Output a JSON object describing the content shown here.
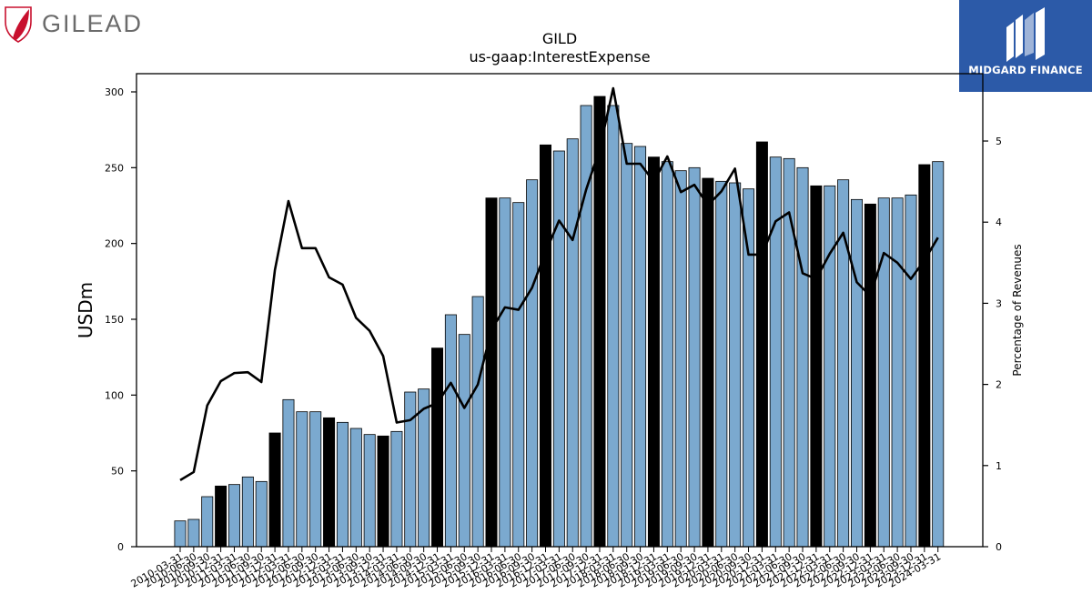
{
  "branding": {
    "company_logo_text": "GILEAD",
    "company_logo_color": "#c8102e",
    "publisher_logo_text": "MIDGARD FINANCE",
    "publisher_bg_color": "#2c5aa8"
  },
  "chart_data": {
    "type": "bar",
    "title": "GILD",
    "subtitle": "us-gaap:InterestExpense",
    "ylabel": "USDm",
    "y2label": "Percentage of Revenues",
    "ylim": [
      0,
      312
    ],
    "y2lim": [
      0,
      5.83
    ],
    "yticks": [
      0,
      50,
      100,
      150,
      200,
      250,
      300
    ],
    "y2ticks": [
      0,
      1,
      2,
      3,
      4,
      5
    ],
    "bar_color": "#7ba9cf",
    "highlight_color": "#000000",
    "line_color": "#000000",
    "categories": [
      "2010-03-31",
      "2010-06-30",
      "2010-09-30",
      "2010-12-31",
      "2011-03-31",
      "2011-06-30",
      "2011-09-30",
      "2011-12-31",
      "2012-03-31",
      "2012-06-30",
      "2012-09-30",
      "2012-12-31",
      "2013-03-31",
      "2013-06-30",
      "2013-09-30",
      "2013-12-31",
      "2014-03-31",
      "2014-06-30",
      "2014-09-30",
      "2014-12-31",
      "2015-03-31",
      "2015-06-30",
      "2015-09-30",
      "2015-12-31",
      "2016-03-31",
      "2016-06-30",
      "2016-09-30",
      "2016-12-31",
      "2017-03-31",
      "2017-06-30",
      "2017-09-30",
      "2017-12-31",
      "2018-03-31",
      "2018-06-30",
      "2018-09-30",
      "2018-12-31",
      "2019-03-31",
      "2019-06-30",
      "2019-09-30",
      "2019-12-31",
      "2020-03-31",
      "2020-06-30",
      "2020-09-30",
      "2020-12-31",
      "2021-03-31",
      "2021-06-30",
      "2021-09-30",
      "2021-12-31",
      "2022-03-31",
      "2022-06-30",
      "2022-09-30",
      "2022-12-31",
      "2023-03-31",
      "2023-06-30",
      "2023-09-30",
      "2023-12-31",
      "2024-03-31"
    ],
    "values": [
      17,
      18,
      33,
      40,
      41,
      46,
      43,
      75,
      97,
      89,
      89,
      85,
      82,
      78,
      74,
      73,
      76,
      102,
      104,
      131,
      153,
      140,
      165,
      230,
      230,
      227,
      242,
      265,
      261,
      269,
      291,
      297,
      291,
      266,
      264,
      257,
      254,
      248,
      250,
      243,
      241,
      240,
      236,
      267,
      257,
      256,
      250,
      238,
      238,
      242,
      229,
      226,
      230,
      230,
      232,
      252,
      254
    ],
    "highlighted": [
      false,
      false,
      false,
      true,
      false,
      false,
      false,
      true,
      false,
      false,
      false,
      true,
      false,
      false,
      false,
      true,
      false,
      false,
      false,
      true,
      false,
      false,
      false,
      true,
      false,
      false,
      false,
      true,
      false,
      false,
      false,
      true,
      false,
      false,
      false,
      true,
      false,
      false,
      false,
      true,
      false,
      false,
      false,
      true,
      false,
      false,
      false,
      true,
      false,
      false,
      false,
      true,
      false,
      false,
      false,
      true,
      false
    ],
    "line_series": {
      "values": [
        0.82,
        0.92,
        1.74,
        2.04,
        2.14,
        2.15,
        2.03,
        3.41,
        4.26,
        3.68,
        3.68,
        3.32,
        3.23,
        2.82,
        2.66,
        2.35,
        1.53,
        1.56,
        1.7,
        1.77,
        2.02,
        1.71,
        2.0,
        2.67,
        2.95,
        2.92,
        3.19,
        3.63,
        4.02,
        3.78,
        4.4,
        4.9,
        5.65,
        4.72,
        4.72,
        4.5,
        4.81,
        4.37,
        4.46,
        4.21,
        4.38,
        4.66,
        3.6,
        3.6,
        4.01,
        4.12,
        3.37,
        3.3,
        3.61,
        3.87,
        3.26,
        3.09,
        3.62,
        3.5,
        3.3,
        3.53,
        3.81
      ]
    }
  }
}
